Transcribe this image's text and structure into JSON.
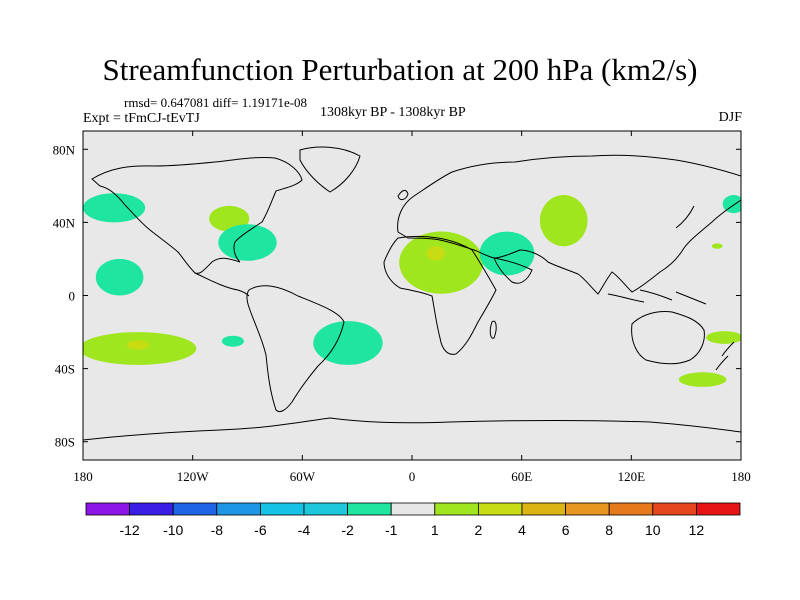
{
  "chart_data": {
    "type": "heatmap",
    "title": "Streamfunction Perturbation at 200 hPa (km2/s)",
    "stats": "rmsd= 0.647081 diff= 1.19171e-08",
    "experiment": "Expt = tFmCJ-tEvTJ",
    "period": "1308kyr BP - 1308kyr BP",
    "season": "DJF",
    "xlabel": "",
    "ylabel": "",
    "xlim": [
      -180,
      180
    ],
    "ylim": [
      -90,
      90
    ],
    "x_ticks": [
      {
        "value": -180,
        "label": "180"
      },
      {
        "value": -120,
        "label": "120W"
      },
      {
        "value": -60,
        "label": "60W"
      },
      {
        "value": 0,
        "label": "0"
      },
      {
        "value": 60,
        "label": "60E"
      },
      {
        "value": 120,
        "label": "120E"
      },
      {
        "value": 180,
        "label": "180"
      }
    ],
    "y_ticks": [
      {
        "value": 80,
        "label": "80N"
      },
      {
        "value": 40,
        "label": "40N"
      },
      {
        "value": 0,
        "label": "0"
      },
      {
        "value": -40,
        "label": "40S"
      },
      {
        "value": -80,
        "label": "80S"
      }
    ],
    "colorbar": {
      "colors": [
        "#8c14e6",
        "#3a1ee6",
        "#1e64e6",
        "#1e96e6",
        "#14c3e6",
        "#1ec8dc",
        "#1ee6a0",
        "#e6e6e6",
        "#a0e61e",
        "#c8dc14",
        "#dcb414",
        "#e6961e",
        "#e6781e",
        "#e6461e",
        "#e61414"
      ],
      "labels": [
        "-12",
        "-10",
        "-8",
        "-6",
        "-4",
        "-2",
        "-1",
        "1",
        "2",
        "4",
        "6",
        "8",
        "10",
        "12"
      ]
    },
    "anomalies": [
      {
        "lon": -163,
        "lat": 48,
        "rlon": 17,
        "rlat": 8,
        "value": -1.5
      },
      {
        "lon": -160,
        "lat": 10,
        "rlon": 13,
        "rlat": 10,
        "value": -1.5
      },
      {
        "lon": -150,
        "lat": -29,
        "rlon": 32,
        "rlat": 9,
        "value": 1.5
      },
      {
        "lon": -150,
        "lat": -27,
        "rlon": 6,
        "rlat": 2.5,
        "value": 2.5
      },
      {
        "lon": -98,
        "lat": -25,
        "rlon": 6,
        "rlat": 3,
        "value": -1.5
      },
      {
        "lon": -100,
        "lat": 42,
        "rlon": 11,
        "rlat": 7,
        "value": 1.5
      },
      {
        "lon": -90,
        "lat": 29,
        "rlon": 16,
        "rlat": 10,
        "value": -1.5
      },
      {
        "lon": -35,
        "lat": -26,
        "rlon": 19,
        "rlat": 12,
        "value": -1.5
      },
      {
        "lon": 16,
        "lat": 18,
        "rlon": 23,
        "rlat": 17,
        "value": 1.5
      },
      {
        "lon": 13,
        "lat": 23,
        "rlon": 5,
        "rlat": 4,
        "value": 2.5
      },
      {
        "lon": 52,
        "lat": 23,
        "rlon": 15,
        "rlat": 12,
        "value": -1.5
      },
      {
        "lon": 83,
        "lat": 41,
        "rlon": 13,
        "rlat": 14,
        "value": 1.5
      },
      {
        "lon": 176,
        "lat": 50,
        "rlon": 6,
        "rlat": 5,
        "value": -1.5
      },
      {
        "lon": 167,
        "lat": 27,
        "rlon": 3,
        "rlat": 1.5,
        "value": 1.5
      },
      {
        "lon": 171,
        "lat": -23,
        "rlon": 10,
        "rlat": 3.5,
        "value": 1.5
      },
      {
        "lon": 159,
        "lat": -46,
        "rlon": 13,
        "rlat": 4,
        "value": 1.5
      }
    ]
  }
}
